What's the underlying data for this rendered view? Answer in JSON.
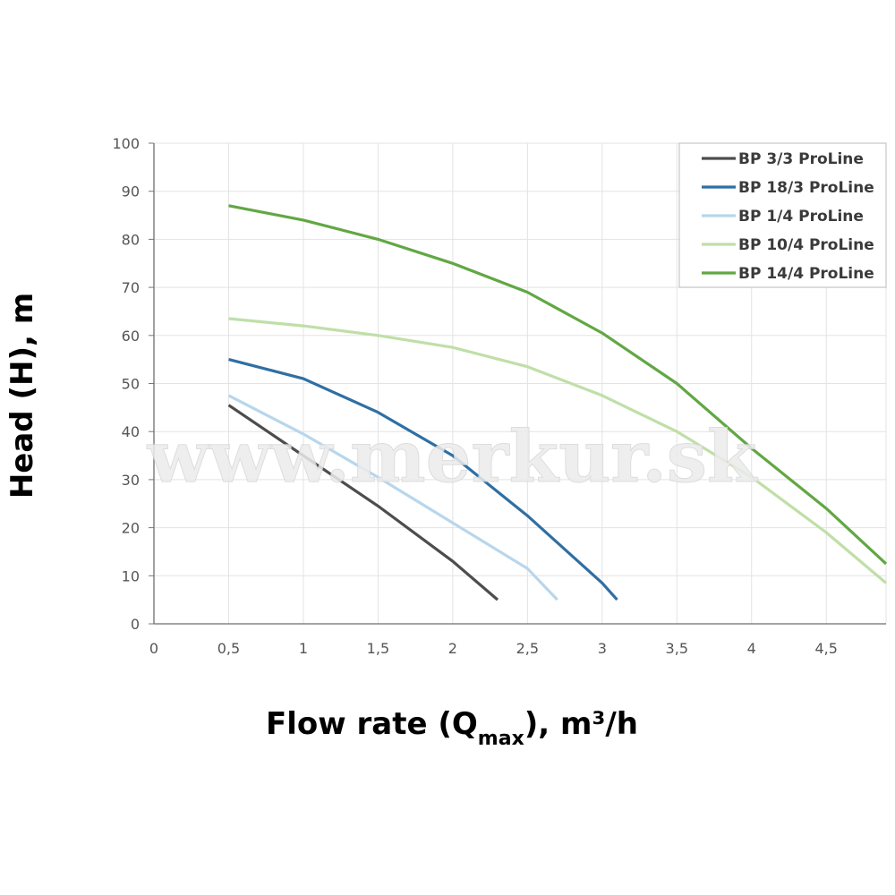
{
  "chart_data": {
    "type": "line",
    "title": "",
    "xlabel": "Flow rate (Q",
    "xlabel_sub": "max",
    "xlabel_unit": "), m³/h",
    "ylabel": "Head (H), m",
    "xlim": [
      0,
      4.9
    ],
    "ylim": [
      0,
      100
    ],
    "x_ticks": [
      0,
      0.5,
      1,
      1.5,
      2,
      2.5,
      3,
      3.5,
      4,
      4.5
    ],
    "x_tick_labels": [
      "0",
      "0,5",
      "1",
      "1,5",
      "2",
      "2,5",
      "3",
      "3,5",
      "4",
      "4,5"
    ],
    "y_ticks": [
      0,
      10,
      20,
      30,
      40,
      50,
      60,
      70,
      80,
      90,
      100
    ],
    "y_tick_labels": [
      "0",
      "10",
      "20",
      "30",
      "40",
      "50",
      "60",
      "70",
      "80",
      "90",
      "100"
    ],
    "grid": true,
    "legend_position": "top-right",
    "watermark": "www.merkur.sk",
    "series": [
      {
        "name": "BP 3/3 ProLine",
        "color": "#4d4d4d",
        "points": [
          [
            0.5,
            45.5
          ],
          [
            1.0,
            35
          ],
          [
            1.5,
            24.5
          ],
          [
            2.0,
            13
          ],
          [
            2.3,
            5
          ]
        ]
      },
      {
        "name": "BP 18/3 ProLine",
        "color": "#2f6fa3",
        "points": [
          [
            0.5,
            55
          ],
          [
            1.0,
            51
          ],
          [
            1.5,
            44
          ],
          [
            2.0,
            35
          ],
          [
            2.5,
            22.5
          ],
          [
            3.0,
            8.5
          ],
          [
            3.1,
            5
          ]
        ]
      },
      {
        "name": "BP 1/4 ProLine",
        "color": "#b8d6ec",
        "points": [
          [
            0.5,
            47.5
          ],
          [
            1.0,
            39.5
          ],
          [
            1.5,
            30.5
          ],
          [
            2.0,
            21
          ],
          [
            2.5,
            11.5
          ],
          [
            2.7,
            5
          ]
        ]
      },
      {
        "name": "BP 10/4 ProLine",
        "color": "#bfdfa7",
        "points": [
          [
            0.5,
            63.5
          ],
          [
            1.0,
            62
          ],
          [
            1.5,
            60
          ],
          [
            2.0,
            57.5
          ],
          [
            2.5,
            53.5
          ],
          [
            3.0,
            47.5
          ],
          [
            3.5,
            40
          ],
          [
            4.0,
            30.5
          ],
          [
            4.5,
            19
          ],
          [
            4.9,
            8.5
          ]
        ]
      },
      {
        "name": "BP 14/4 ProLine",
        "color": "#62a744",
        "points": [
          [
            0.5,
            87
          ],
          [
            1.0,
            84
          ],
          [
            1.5,
            80
          ],
          [
            2.0,
            75
          ],
          [
            2.5,
            69
          ],
          [
            3.0,
            60.5
          ],
          [
            3.5,
            50
          ],
          [
            4.0,
            36.5
          ],
          [
            4.5,
            24
          ],
          [
            4.9,
            12.5
          ]
        ]
      }
    ]
  }
}
